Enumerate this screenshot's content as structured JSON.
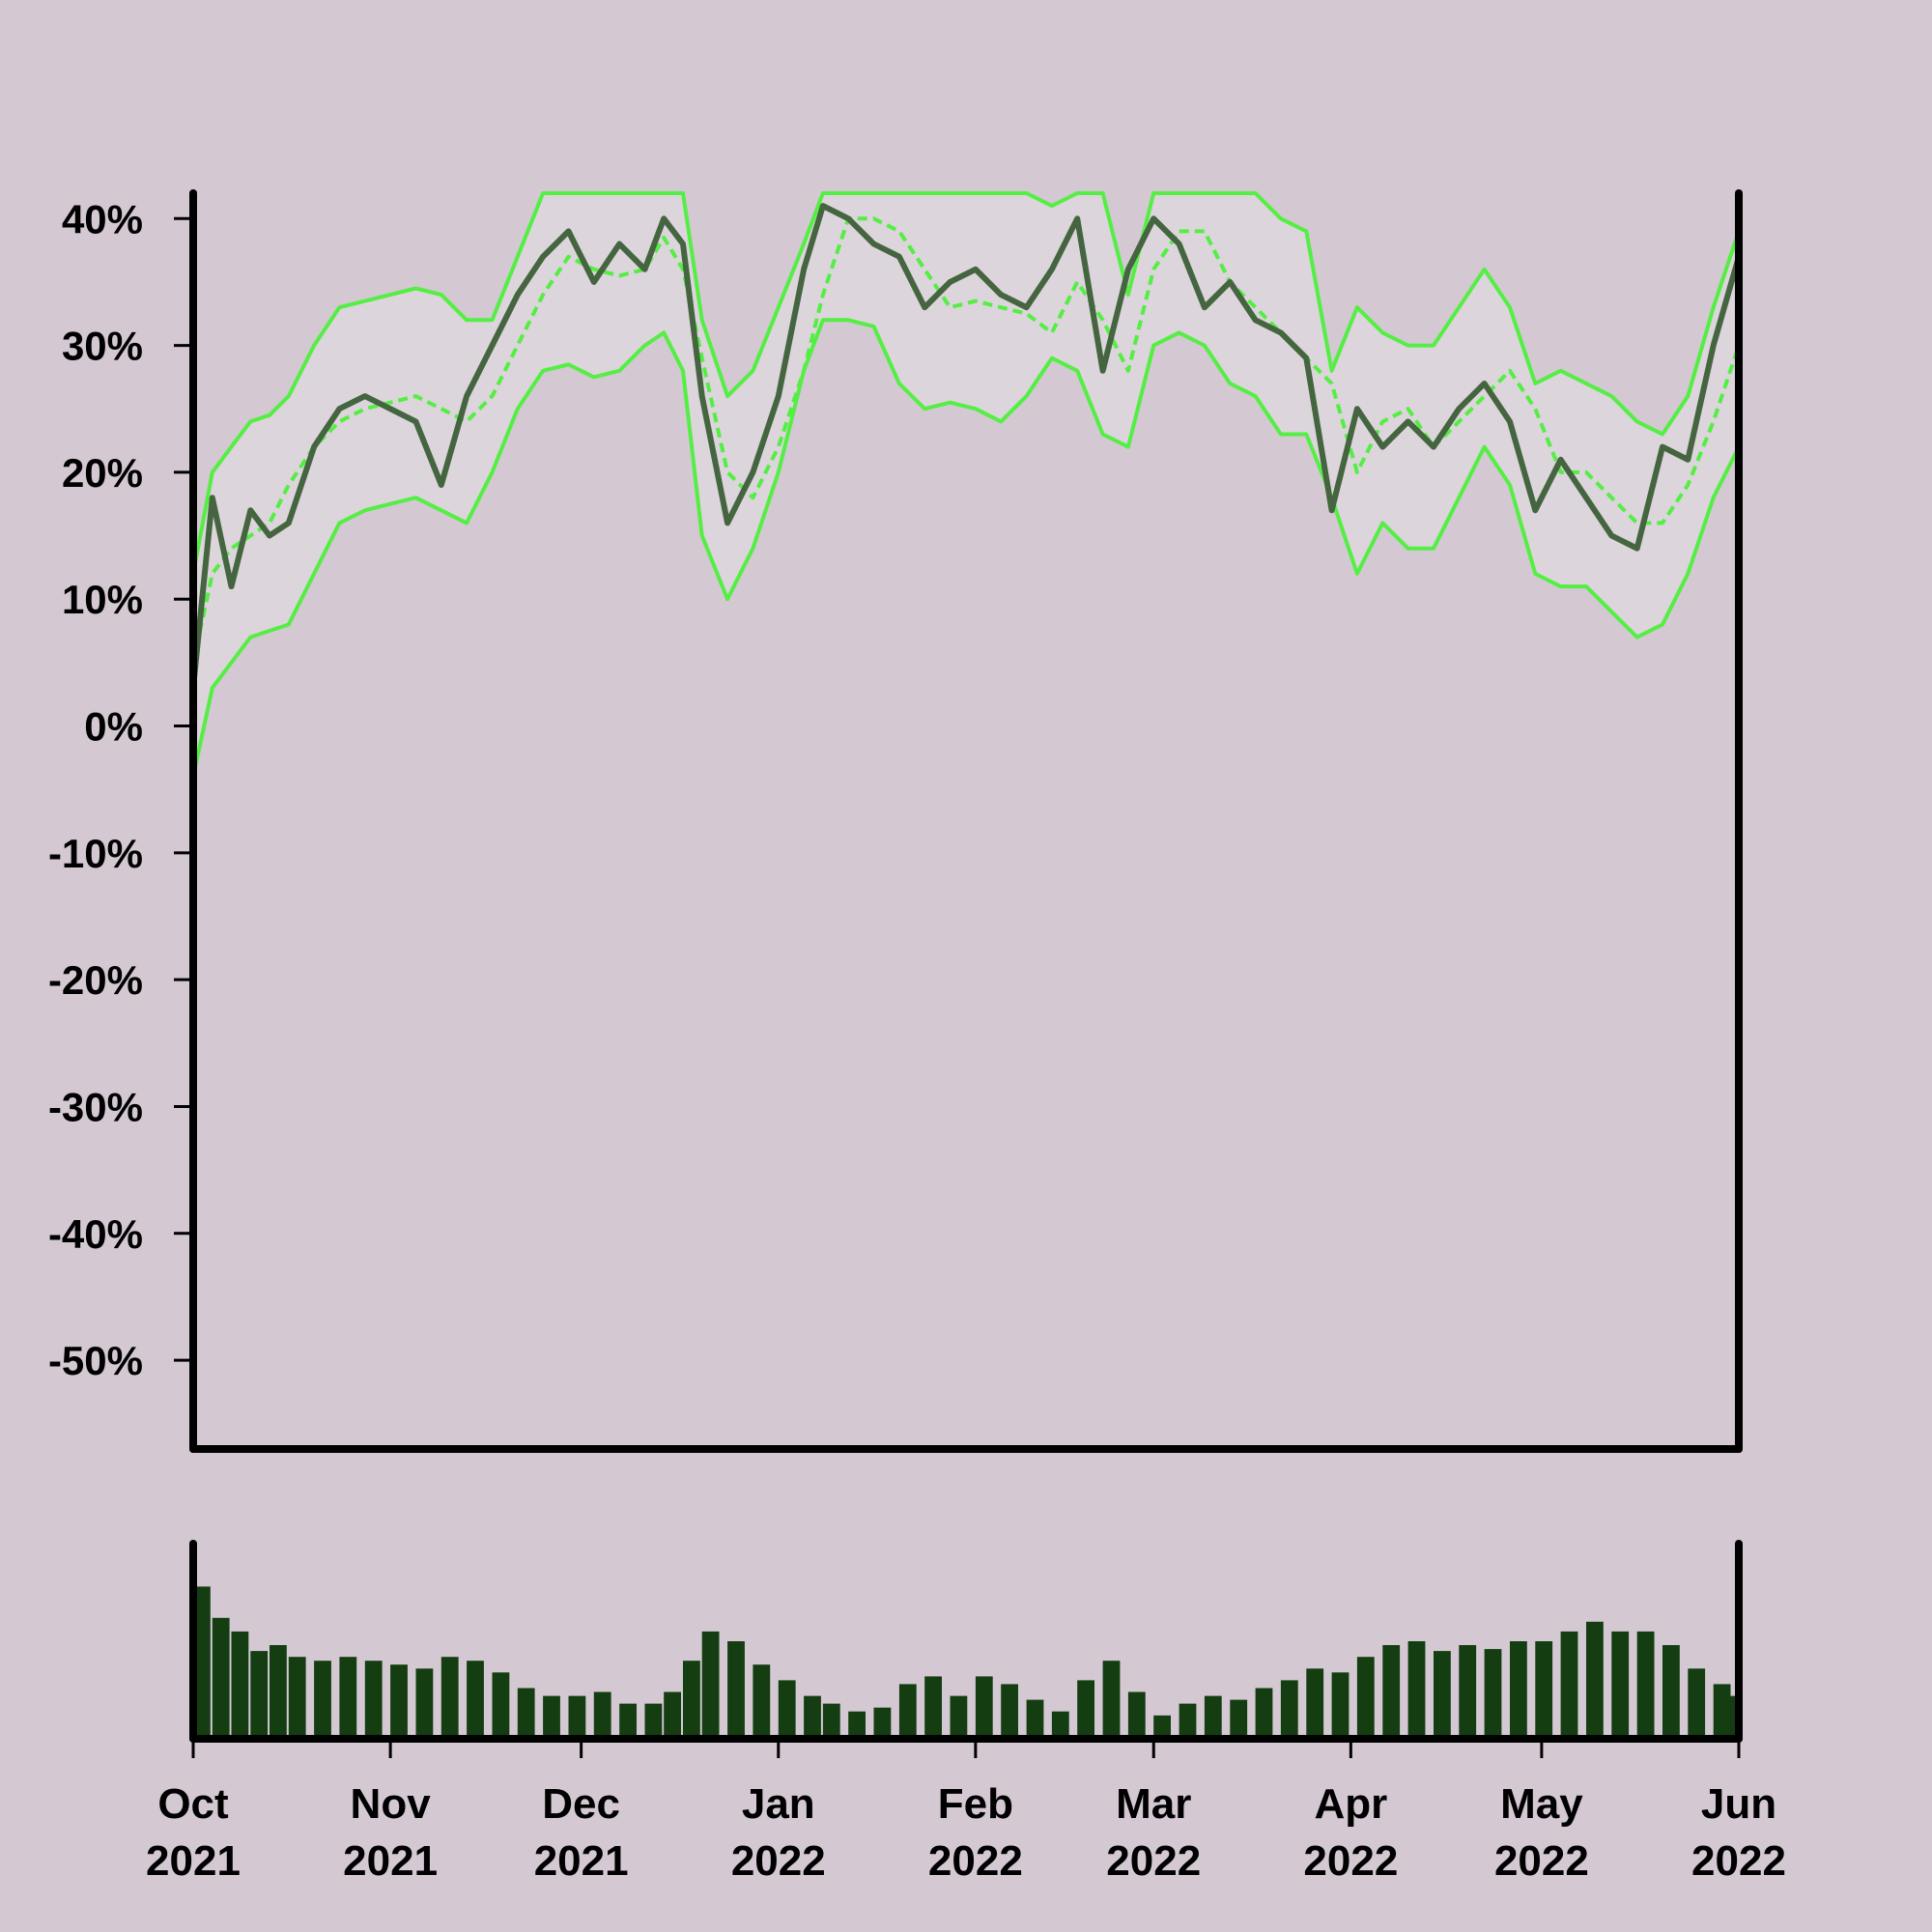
{
  "colors": {
    "background": "#d4c9d3",
    "band_fill": "#ddd5dc",
    "price_line": "#44653f",
    "band_lines": "#55ee44",
    "volume_bars": "#143d12",
    "axes": "#000000"
  },
  "chart_data": [
    {
      "type": "line",
      "title": "",
      "xlabel": "",
      "ylabel": "",
      "x_range": [
        "2021-10-01",
        "2022-06-01"
      ],
      "ylim": [
        -57,
        42
      ],
      "y_tick_values": [
        40,
        30,
        20,
        10,
        0,
        -10,
        -20,
        -30,
        -40,
        -50
      ],
      "y_tick_labels": [
        "40%",
        "30%",
        "20%",
        "10%",
        "0%",
        "-10%",
        "-20%",
        "-30%",
        "-40%",
        "-50%"
      ],
      "grid": false,
      "legend": "none",
      "series": [
        {
          "x": [
            "2021-10-01",
            "2021-10-04",
            "2021-10-07",
            "2021-10-10",
            "2021-10-13",
            "2021-10-16",
            "2021-10-20",
            "2021-10-24",
            "2021-10-28",
            "2021-11-01",
            "2021-11-05",
            "2021-11-09",
            "2021-11-13",
            "2021-11-17",
            "2021-11-21",
            "2021-11-25",
            "2021-11-29",
            "2021-12-03",
            "2021-12-07",
            "2021-12-11",
            "2021-12-14",
            "2021-12-17",
            "2021-12-20",
            "2021-12-24",
            "2021-12-28",
            "2022-01-01",
            "2022-01-05",
            "2022-01-08",
            "2022-01-12",
            "2022-01-16",
            "2022-01-20",
            "2022-01-24",
            "2022-01-28",
            "2022-02-01",
            "2022-02-05",
            "2022-02-09",
            "2022-02-13",
            "2022-02-17",
            "2022-02-21",
            "2022-02-25",
            "2022-03-01",
            "2022-03-05",
            "2022-03-09",
            "2022-03-13",
            "2022-03-17",
            "2022-03-21",
            "2022-03-25",
            "2022-03-29",
            "2022-04-02",
            "2022-04-06",
            "2022-04-10",
            "2022-04-14",
            "2022-04-18",
            "2022-04-22",
            "2022-04-26",
            "2022-04-30",
            "2022-05-04",
            "2022-05-08",
            "2022-05-12",
            "2022-05-16",
            "2022-05-20",
            "2022-05-24",
            "2022-05-28",
            "2022-06-01"
          ],
          "values": [
            3,
            18,
            11,
            17,
            15,
            16,
            22,
            25,
            26,
            25,
            24,
            19,
            26,
            30,
            34,
            37,
            39,
            35,
            38,
            36,
            40,
            38,
            26,
            16,
            20,
            26,
            36,
            41,
            40,
            38,
            37,
            33,
            35,
            36,
            34,
            33,
            36,
            40,
            28,
            36,
            40,
            38,
            33,
            35,
            32,
            31,
            29,
            17,
            25,
            22,
            24,
            22,
            25,
            27,
            24,
            17,
            21,
            18,
            15,
            14,
            22,
            21,
            30,
            37
          ]
        },
        {
          "x": [
            "2021-10-01",
            "2021-10-04",
            "2021-10-07",
            "2021-10-10",
            "2021-10-13",
            "2021-10-16",
            "2021-10-20",
            "2021-10-24",
            "2021-10-28",
            "2021-11-01",
            "2021-11-05",
            "2021-11-09",
            "2021-11-13",
            "2021-11-17",
            "2021-11-21",
            "2021-11-25",
            "2021-11-29",
            "2021-12-03",
            "2021-12-07",
            "2021-12-11",
            "2021-12-14",
            "2021-12-17",
            "2021-12-20",
            "2021-12-24",
            "2021-12-28",
            "2022-01-01",
            "2022-01-05",
            "2022-01-08",
            "2022-01-12",
            "2022-01-16",
            "2022-01-20",
            "2022-01-24",
            "2022-01-28",
            "2022-02-01",
            "2022-02-05",
            "2022-02-09",
            "2022-02-13",
            "2022-02-17",
            "2022-02-21",
            "2022-02-25",
            "2022-03-01",
            "2022-03-05",
            "2022-03-09",
            "2022-03-13",
            "2022-03-17",
            "2022-03-21",
            "2022-03-25",
            "2022-03-29",
            "2022-04-02",
            "2022-04-06",
            "2022-04-10",
            "2022-04-14",
            "2022-04-18",
            "2022-04-22",
            "2022-04-26",
            "2022-04-30",
            "2022-05-04",
            "2022-05-08",
            "2022-05-12",
            "2022-05-16",
            "2022-05-20",
            "2022-05-24",
            "2022-05-28",
            "2022-06-01"
          ],
          "values": [
            5,
            12,
            14,
            15,
            16,
            19,
            22,
            24,
            25,
            25.5,
            26,
            25,
            24,
            26,
            30,
            34,
            37,
            36,
            35.5,
            36,
            38.5,
            36,
            29,
            20,
            18,
            22,
            28,
            34,
            40,
            40,
            39,
            36,
            33,
            33.5,
            33,
            32.5,
            31,
            35,
            32,
            28,
            36,
            39,
            39,
            35,
            33,
            31,
            29,
            27,
            20,
            24,
            25,
            22,
            24,
            26,
            28,
            25,
            20,
            20,
            18,
            16,
            16,
            19,
            24,
            30
          ]
        },
        {
          "x": [
            "2021-10-01",
            "2021-10-04",
            "2021-10-07",
            "2021-10-10",
            "2021-10-13",
            "2021-10-16",
            "2021-10-20",
            "2021-10-24",
            "2021-10-28",
            "2021-11-01",
            "2021-11-05",
            "2021-11-09",
            "2021-11-13",
            "2021-11-17",
            "2021-11-21",
            "2021-11-25",
            "2021-11-29",
            "2021-12-03",
            "2021-12-07",
            "2021-12-11",
            "2021-12-14",
            "2021-12-17",
            "2021-12-20",
            "2021-12-24",
            "2021-12-28",
            "2022-01-01",
            "2022-01-05",
            "2022-01-08",
            "2022-01-12",
            "2022-01-16",
            "2022-01-20",
            "2022-01-24",
            "2022-01-28",
            "2022-02-01",
            "2022-02-05",
            "2022-02-09",
            "2022-02-13",
            "2022-02-17",
            "2022-02-21",
            "2022-02-25",
            "2022-03-01",
            "2022-03-05",
            "2022-03-09",
            "2022-03-13",
            "2022-03-17",
            "2022-03-21",
            "2022-03-25",
            "2022-03-29",
            "2022-04-02",
            "2022-04-06",
            "2022-04-10",
            "2022-04-14",
            "2022-04-18",
            "2022-04-22",
            "2022-04-26",
            "2022-04-30",
            "2022-05-04",
            "2022-05-08",
            "2022-05-12",
            "2022-05-16",
            "2022-05-20",
            "2022-05-24",
            "2022-05-28",
            "2022-06-01"
          ],
          "values": [
            12,
            20,
            22,
            24,
            24.5,
            26,
            30,
            33,
            33.5,
            34,
            34.5,
            34,
            32,
            32,
            37,
            42,
            42,
            42,
            42,
            42,
            42,
            42,
            32,
            26,
            28,
            33,
            38,
            42,
            42,
            42,
            42,
            42,
            42,
            42,
            42,
            42,
            41,
            42,
            42,
            34,
            42,
            42,
            42,
            42,
            42,
            40,
            39,
            28,
            33,
            31,
            30,
            30,
            33,
            36,
            33,
            27,
            28,
            27,
            26,
            24,
            23,
            26,
            33,
            39
          ]
        },
        {
          "x": [
            "2021-10-01",
            "2021-10-04",
            "2021-10-07",
            "2021-10-10",
            "2021-10-13",
            "2021-10-16",
            "2021-10-20",
            "2021-10-24",
            "2021-10-28",
            "2021-11-01",
            "2021-11-05",
            "2021-11-09",
            "2021-11-13",
            "2021-11-17",
            "2021-11-21",
            "2021-11-25",
            "2021-11-29",
            "2021-12-03",
            "2021-12-07",
            "2021-12-11",
            "2021-12-14",
            "2021-12-17",
            "2021-12-20",
            "2021-12-24",
            "2021-12-28",
            "2022-01-01",
            "2022-01-05",
            "2022-01-08",
            "2022-01-12",
            "2022-01-16",
            "2022-01-20",
            "2022-01-24",
            "2022-01-28",
            "2022-02-01",
            "2022-02-05",
            "2022-02-09",
            "2022-02-13",
            "2022-02-17",
            "2022-02-21",
            "2022-02-25",
            "2022-03-01",
            "2022-03-05",
            "2022-03-09",
            "2022-03-13",
            "2022-03-17",
            "2022-03-21",
            "2022-03-25",
            "2022-03-29",
            "2022-04-02",
            "2022-04-06",
            "2022-04-10",
            "2022-04-14",
            "2022-04-18",
            "2022-04-22",
            "2022-04-26",
            "2022-04-30",
            "2022-05-04",
            "2022-05-08",
            "2022-05-12",
            "2022-05-16",
            "2022-05-20",
            "2022-05-24",
            "2022-05-28",
            "2022-06-01"
          ],
          "values": [
            -4,
            3,
            5,
            7,
            7.5,
            8,
            12,
            16,
            17,
            17.5,
            18,
            17,
            16,
            20,
            25,
            28,
            28.5,
            27.5,
            28,
            30,
            31,
            28,
            15,
            10,
            14,
            20,
            28,
            32,
            32,
            31.5,
            27,
            25,
            25.5,
            25,
            24,
            26,
            29,
            28,
            23,
            22,
            30,
            31,
            30,
            27,
            26,
            23,
            23,
            18,
            12,
            16,
            14,
            14,
            18,
            22,
            19,
            12,
            11,
            11,
            9,
            7,
            8,
            12,
            18,
            22
          ]
        }
      ]
    },
    {
      "type": "bar",
      "title": "",
      "xlabel": "",
      "ylabel": "",
      "x_range": [
        "2021-10-01",
        "2022-06-01"
      ],
      "x_ticks": [
        "2021-10-01",
        "2021-11-01",
        "2021-12-01",
        "2022-01-01",
        "2022-02-01",
        "2022-03-01",
        "2022-04-01",
        "2022-05-01",
        "2022-06-01"
      ],
      "x_tick_month_labels": [
        "Oct",
        "Nov",
        "Dec",
        "Jan",
        "Feb",
        "Mar",
        "Apr",
        "May",
        "Jun"
      ],
      "x_tick_year_labels": [
        "2021",
        "2021",
        "2021",
        "2022",
        "2022",
        "2022",
        "2022",
        "2022",
        "2022"
      ],
      "ylim": [
        0,
        1
      ],
      "legend": "none",
      "x": [
        "2021-10-01",
        "2021-10-04",
        "2021-10-07",
        "2021-10-10",
        "2021-10-13",
        "2021-10-16",
        "2021-10-20",
        "2021-10-24",
        "2021-10-28",
        "2021-11-01",
        "2021-11-05",
        "2021-11-09",
        "2021-11-13",
        "2021-11-17",
        "2021-11-21",
        "2021-11-25",
        "2021-11-29",
        "2021-12-03",
        "2021-12-07",
        "2021-12-11",
        "2021-12-14",
        "2021-12-17",
        "2021-12-20",
        "2021-12-24",
        "2021-12-28",
        "2022-01-01",
        "2022-01-05",
        "2022-01-08",
        "2022-01-12",
        "2022-01-16",
        "2022-01-20",
        "2022-01-24",
        "2022-01-28",
        "2022-02-01",
        "2022-02-05",
        "2022-02-09",
        "2022-02-13",
        "2022-02-17",
        "2022-02-21",
        "2022-02-25",
        "2022-03-01",
        "2022-03-05",
        "2022-03-09",
        "2022-03-13",
        "2022-03-17",
        "2022-03-21",
        "2022-03-25",
        "2022-03-29",
        "2022-04-02",
        "2022-04-06",
        "2022-04-10",
        "2022-04-14",
        "2022-04-18",
        "2022-04-22",
        "2022-04-26",
        "2022-04-30",
        "2022-05-04",
        "2022-05-08",
        "2022-05-12",
        "2022-05-16",
        "2022-05-20",
        "2022-05-24",
        "2022-05-28",
        "2022-06-01"
      ],
      "values": [
        0.78,
        0.62,
        0.55,
        0.45,
        0.48,
        0.42,
        0.4,
        0.42,
        0.4,
        0.38,
        0.36,
        0.42,
        0.4,
        0.34,
        0.26,
        0.22,
        0.22,
        0.24,
        0.18,
        0.18,
        0.24,
        0.4,
        0.55,
        0.5,
        0.38,
        0.3,
        0.22,
        0.18,
        0.14,
        0.16,
        0.28,
        0.32,
        0.22,
        0.32,
        0.28,
        0.2,
        0.14,
        0.3,
        0.4,
        0.24,
        0.12,
        0.18,
        0.22,
        0.2,
        0.26,
        0.3,
        0.36,
        0.34,
        0.42,
        0.48,
        0.5,
        0.45,
        0.48,
        0.46,
        0.5,
        0.5,
        0.55,
        0.6,
        0.55,
        0.55,
        0.48,
        0.36,
        0.28,
        0.22
      ]
    }
  ]
}
